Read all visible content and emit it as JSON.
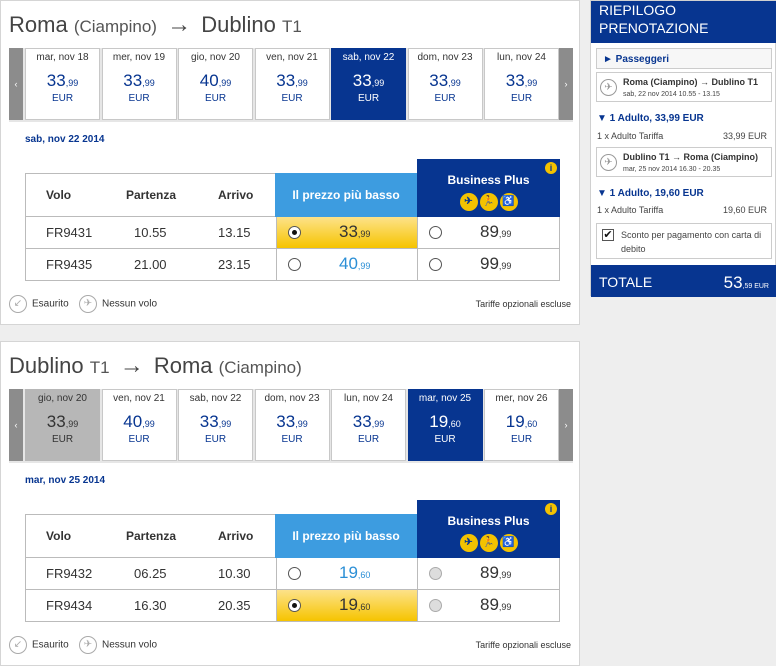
{
  "outbound": {
    "from": "Roma",
    "from_sub": "(Ciampino)",
    "arrow": "→",
    "to": "Dublino",
    "to_sub": "T1",
    "nav_prev": "‹",
    "nav_next": "›",
    "days": [
      {
        "label": "mar, nov 18",
        "int": "33",
        "dec": ",99",
        "cur": "EUR",
        "state": ""
      },
      {
        "label": "mer, nov 19",
        "int": "33",
        "dec": ",99",
        "cur": "EUR",
        "state": ""
      },
      {
        "label": "gio, nov 20",
        "int": "40",
        "dec": ",99",
        "cur": "EUR",
        "state": ""
      },
      {
        "label": "ven, nov 21",
        "int": "33",
        "dec": ",99",
        "cur": "EUR",
        "state": ""
      },
      {
        "label": "sab, nov 22",
        "int": "33",
        "dec": ",99",
        "cur": "EUR",
        "state": "sel"
      },
      {
        "label": "dom, nov 23",
        "int": "33",
        "dec": ",99",
        "cur": "EUR",
        "state": ""
      },
      {
        "label": "lun, nov 24",
        "int": "33",
        "dec": ",99",
        "cur": "EUR",
        "state": ""
      }
    ],
    "selected_date": "sab, nov 22 2014",
    "headers": {
      "volo": "Volo",
      "partenza": "Partenza",
      "arrivo": "Arrivo",
      "low": "Il prezzo più basso",
      "biz": "Business Plus"
    },
    "flights": [
      {
        "code": "FR9431",
        "dep": "10.55",
        "arr": "13.15",
        "low_int": "33",
        "low_dec": ",99",
        "low_selected": true,
        "biz_int": "89",
        "biz_dec": ",99",
        "biz_available": true
      },
      {
        "code": "FR9435",
        "dep": "21.00",
        "arr": "23.15",
        "low_int": "40",
        "low_dec": ",99",
        "low_selected": false,
        "biz_int": "99",
        "biz_dec": ",99",
        "biz_available": true
      }
    ]
  },
  "inbound": {
    "from": "Dublino",
    "from_sub": "T1",
    "arrow": "→",
    "to": "Roma",
    "to_sub": "(Ciampino)",
    "nav_prev": "‹",
    "nav_next": "›",
    "days": [
      {
        "label": "gio, nov 20",
        "int": "33",
        "dec": ",99",
        "cur": "EUR",
        "state": "dis"
      },
      {
        "label": "ven, nov 21",
        "int": "40",
        "dec": ",99",
        "cur": "EUR",
        "state": ""
      },
      {
        "label": "sab, nov 22",
        "int": "33",
        "dec": ",99",
        "cur": "EUR",
        "state": ""
      },
      {
        "label": "dom, nov 23",
        "int": "33",
        "dec": ",99",
        "cur": "EUR",
        "state": ""
      },
      {
        "label": "lun, nov 24",
        "int": "33",
        "dec": ",99",
        "cur": "EUR",
        "state": ""
      },
      {
        "label": "mar, nov 25",
        "int": "19",
        "dec": ",60",
        "cur": "EUR",
        "state": "sel"
      },
      {
        "label": "mer, nov 26",
        "int": "19",
        "dec": ",60",
        "cur": "EUR",
        "state": ""
      }
    ],
    "selected_date": "mar, nov 25 2014",
    "headers": {
      "volo": "Volo",
      "partenza": "Partenza",
      "arrivo": "Arrivo",
      "low": "Il prezzo più basso",
      "biz": "Business Plus"
    },
    "flights": [
      {
        "code": "FR9432",
        "dep": "06.25",
        "arr": "10.30",
        "low_int": "19",
        "low_dec": ",60",
        "low_selected": false,
        "biz_int": "89",
        "biz_dec": ",99",
        "biz_available": false
      },
      {
        "code": "FR9434",
        "dep": "16.30",
        "arr": "20.35",
        "low_int": "19",
        "low_dec": ",60",
        "low_selected": true,
        "biz_int": "89",
        "biz_dec": ",99",
        "biz_available": false
      }
    ]
  },
  "legend": {
    "sold_out": "Esaurito",
    "no_flight": "Nessun volo",
    "optional_fees": "Tariffe opzionali escluse"
  },
  "biz_icons": [
    "✈",
    "🏃",
    "♿"
  ],
  "summary": {
    "title_line1": "RIEPILOGO",
    "title_line2": "PRENOTAZIONE",
    "passengers": "► Passeggeri",
    "legs": [
      {
        "route": "Roma (Ciampino) → Dublino T1",
        "time": "sab, 22 nov 2014 10.55 - 13.15",
        "adult": "▼ 1 Adulto, 33,99 EUR",
        "fare_label": "1 x Adulto Tariffa",
        "fare_amount": "33,99 EUR"
      },
      {
        "route": "Dublino T1 → Roma (Ciampino)",
        "time": "mar, 25 nov 2014 16.30 - 20.35",
        "adult": "▼ 1 Adulto, 19,60 EUR",
        "fare_label": "1 x Adulto Tariffa",
        "fare_amount": "19,60 EUR"
      }
    ],
    "discount": "Sconto per pagamento con carta di debito",
    "discount_checked": "✔",
    "total_label": "TOTALE",
    "total_int": "53",
    "total_dec": ",59",
    "total_cur": " EUR"
  },
  "colors": {
    "brand": "#073590",
    "accent": "#f3c200",
    "low_header": "#3d9ce0"
  }
}
